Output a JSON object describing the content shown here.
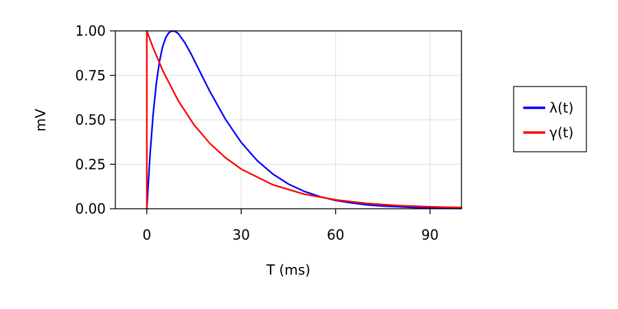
{
  "chart_data": {
    "type": "line",
    "xlabel": "T (ms)",
    "ylabel": "mV",
    "xlim": [
      -10,
      100
    ],
    "ylim": [
      0,
      1
    ],
    "x_ticks": [
      0,
      30,
      60,
      90
    ],
    "y_ticks": [
      0,
      0.25,
      0.5,
      0.75,
      1.0
    ],
    "x_tick_labels": [
      "0",
      "30",
      "60",
      "90"
    ],
    "y_tick_labels": [
      "0.00",
      "0.25",
      "0.50",
      "0.75",
      "1.00"
    ],
    "grid": true,
    "legend_position": "right",
    "series": [
      {
        "name": "λ(t)",
        "color": "#0000ff",
        "x": [
          0,
          1,
          2,
          3,
          4,
          5,
          6,
          7,
          8,
          9,
          10,
          12,
          14,
          16,
          18,
          20,
          25,
          30,
          35,
          40,
          45,
          50,
          55,
          60,
          65,
          70,
          75,
          80,
          85,
          90,
          95,
          100
        ],
        "y": [
          0,
          0.298,
          0.53,
          0.702,
          0.826,
          0.91,
          0.962,
          0.99,
          1.0,
          0.997,
          0.985,
          0.936,
          0.873,
          0.802,
          0.731,
          0.661,
          0.503,
          0.373,
          0.272,
          0.196,
          0.139,
          0.098,
          0.068,
          0.047,
          0.033,
          0.022,
          0.015,
          0.011,
          0.007,
          0.005,
          0.003,
          0.002
        ]
      },
      {
        "name": "γ(t)",
        "color": "#ff0000",
        "x": [
          0,
          0,
          2,
          5,
          10,
          15,
          20,
          25,
          30,
          40,
          50,
          60,
          70,
          80,
          90,
          100
        ],
        "y": [
          0,
          1.0,
          0.905,
          0.779,
          0.607,
          0.472,
          0.368,
          0.287,
          0.223,
          0.135,
          0.082,
          0.05,
          0.03,
          0.018,
          0.011,
          0.007
        ]
      }
    ]
  }
}
